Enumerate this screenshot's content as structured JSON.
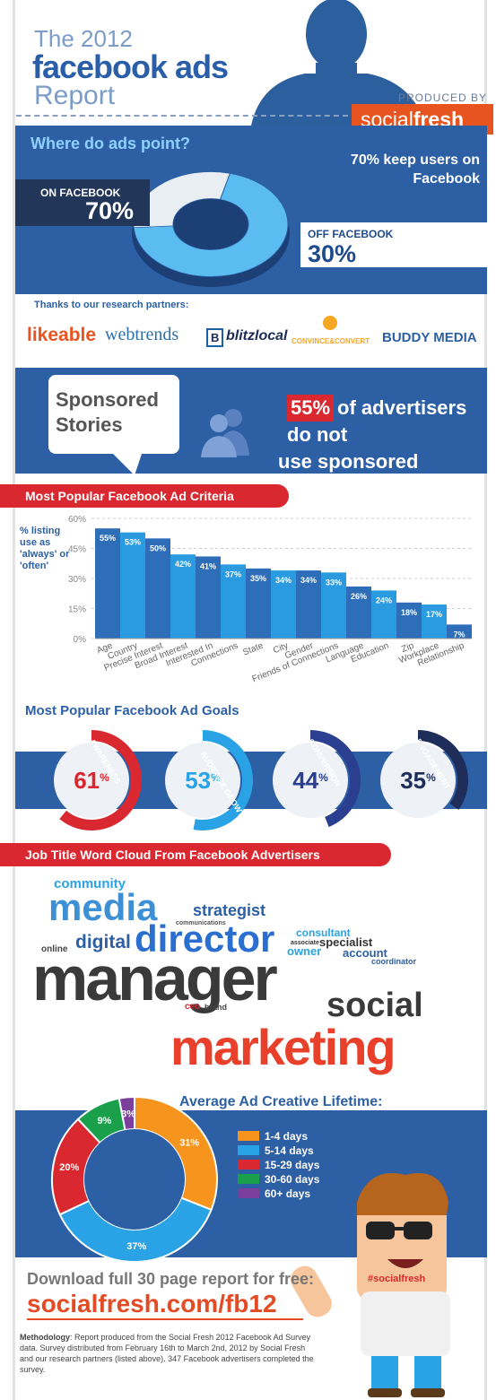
{
  "header": {
    "title_line1": "The 2012",
    "title_line2": "facebook ads",
    "title_line3": "Report",
    "produced_by": "PRODUCED BY",
    "brand_a": "social",
    "brand_b": "fresh"
  },
  "where": {
    "question": "Where do ads point?",
    "summary": "70% keep users on Facebook",
    "on_label": "ON FACEBOOK",
    "on_value": "70%",
    "off_label": "OFF FACEBOOK",
    "off_value": "30%"
  },
  "partners": {
    "title": "Thanks to our research partners:",
    "logos": [
      "likeable",
      "webtrends",
      "blitzlocal",
      "CONVINCE&CONVERT",
      "BUDDY MEDIA"
    ]
  },
  "sponsored": {
    "title_line1": "Sponsored",
    "title_line2": "Stories",
    "stat": "55%",
    "text_line1": "of advertisers do not",
    "text_line2": "use sponsored stories"
  },
  "criteria": {
    "title": "Most Popular Facebook Ad Criteria",
    "ylabel": "% listing use as 'always' or 'often'"
  },
  "goals": {
    "title": "Most Popular Facebook Ad Goals",
    "items": [
      {
        "label": "AWARENESS",
        "value": "61",
        "color": "#d9282f"
      },
      {
        "label": "AUDIENCE GROWTH",
        "value": "53",
        "color": "#29a3e6"
      },
      {
        "label": "CONVERSION",
        "value": "44",
        "color": "#2a3f8f"
      },
      {
        "label": "ENGAGEMENT",
        "value": "35",
        "color": "#1e2d5a"
      }
    ]
  },
  "wordcloud": {
    "title": "Job Title Word Cloud From Facebook Advertisers",
    "words": [
      "community",
      "media",
      "strategist",
      "digital",
      "director",
      "consultant",
      "specialist",
      "owner",
      "account",
      "coordinator",
      "online",
      "manager",
      "ceo",
      "brand",
      "social",
      "marketing",
      "communications",
      "associate",
      "founder",
      "strategy"
    ]
  },
  "lifetime": {
    "title": "Average Ad Creative Lifetime:"
  },
  "mascot": {
    "shirt_text": "#socialfresh"
  },
  "footer": {
    "download": "Download full 30 page report for free:",
    "url": "socialfresh.com/fb12",
    "methodology_label": "Methodology",
    "methodology_text": ": Report produced from the Social Fresh 2012 Facebook Ad Survey data. Survey distributed from February 16th to March 2nd, 2012 by Social Fresh and our research partners (listed above). 347 Facebook advertisers completed the survey."
  },
  "colors": {
    "blue": "#2d5fa5",
    "red": "#d9282f",
    "orange": "#e8541f",
    "light_blue": "#29a3e6"
  },
  "chart_data": [
    {
      "type": "pie",
      "title": "Where do ads point?",
      "categories": [
        "ON FACEBOOK",
        "OFF FACEBOOK"
      ],
      "values": [
        70,
        30
      ]
    },
    {
      "type": "bar",
      "title": "Most Popular Facebook Ad Criteria",
      "ylabel": "% listing use as 'always' or 'often'",
      "categories": [
        "Age",
        "Country",
        "Precise Interest",
        "Broad Interest",
        "Interested In",
        "Connections",
        "State",
        "City",
        "Gender",
        "Friends of Connections",
        "Language",
        "Education",
        "Zip",
        "Workplace",
        "Relationship"
      ],
      "values": [
        55,
        53,
        50,
        42,
        41,
        37,
        35,
        34,
        34,
        33,
        26,
        24,
        18,
        17,
        7
      ],
      "ylim": [
        0,
        60
      ],
      "yticks": [
        "0%",
        "15%",
        "30%",
        "45%",
        "60%"
      ],
      "grid": true
    },
    {
      "type": "pie",
      "title": "Average Ad Creative Lifetime:",
      "categories": [
        "1-4 days",
        "5-14 days",
        "15-29 days",
        "30-60 days",
        "60+ days"
      ],
      "values": [
        31,
        37,
        20,
        9,
        3
      ],
      "colors": [
        "#f7941d",
        "#29a3e6",
        "#d9282f",
        "#1a9f4a",
        "#7b3f9e"
      ]
    }
  ]
}
